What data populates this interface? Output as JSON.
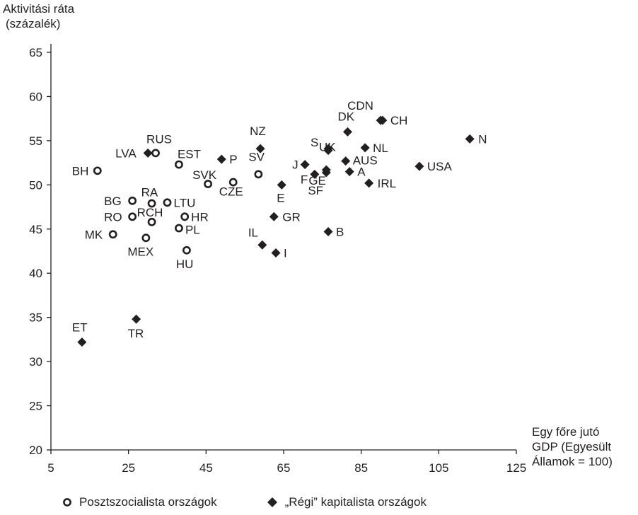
{
  "chart_data": {
    "type": "scatter",
    "ylabel": [
      "Aktivitási ráta",
      "(százalék)"
    ],
    "xlabel": [
      "Egy főre jutó",
      "GDP (Egyesült",
      "Államok = 100)"
    ],
    "xlim": [
      5,
      125
    ],
    "ylim": [
      20,
      65
    ],
    "xticks": [
      5,
      25,
      45,
      65,
      85,
      105,
      125
    ],
    "yticks": [
      20,
      25,
      30,
      35,
      40,
      45,
      50,
      55,
      60,
      65
    ],
    "grid": false,
    "legend_position": "bottom",
    "series": [
      {
        "name": "Posztszocialista országok",
        "marker": "circle-open",
        "points": [
          {
            "label": "BH",
            "x": 17,
            "y": 51.6
          },
          {
            "label": "RUS",
            "x": 32,
            "y": 53.6
          },
          {
            "label": "EST",
            "x": 38,
            "y": 52.3
          },
          {
            "label": "SVK",
            "x": 45.5,
            "y": 50.1
          },
          {
            "label": "CZE",
            "x": 52,
            "y": 50.3
          },
          {
            "label": "SV",
            "x": 58.5,
            "y": 51.2
          },
          {
            "label": "BG",
            "x": 26,
            "y": 48.2
          },
          {
            "label": "RA",
            "x": 31,
            "y": 47.9
          },
          {
            "label": "LTU",
            "x": 35,
            "y": 48.0
          },
          {
            "label": "RO",
            "x": 26,
            "y": 46.4
          },
          {
            "label": "RCH",
            "x": 31,
            "y": 45.8
          },
          {
            "label": "HR",
            "x": 39.5,
            "y": 46.4
          },
          {
            "label": "MK",
            "x": 21,
            "y": 44.4
          },
          {
            "label": "MEX",
            "x": 29.5,
            "y": 44.0
          },
          {
            "label": "PL",
            "x": 38,
            "y": 45.1
          },
          {
            "label": "HU",
            "x": 40,
            "y": 42.6
          }
        ]
      },
      {
        "name": "„Régi” kapitalista országok",
        "marker": "diamond-filled",
        "points": [
          {
            "label": "LVA",
            "x": 30,
            "y": 53.6
          },
          {
            "label": "P",
            "x": 49,
            "y": 52.9
          },
          {
            "label": "NZ",
            "x": 59,
            "y": 54.1
          },
          {
            "label": "E",
            "x": 64.5,
            "y": 50.0
          },
          {
            "label": "GR",
            "x": 62.5,
            "y": 46.4
          },
          {
            "label": "IL",
            "x": 59.5,
            "y": 43.2
          },
          {
            "label": "I",
            "x": 63,
            "y": 42.3
          },
          {
            "label": "J",
            "x": 70.5,
            "y": 52.3
          },
          {
            "label": "F",
            "x": 73,
            "y": 51.2
          },
          {
            "label": "SF",
            "x": 76,
            "y": 51.4
          },
          {
            "label": "GE",
            "x": 76,
            "y": 51.7
          },
          {
            "label": "UK",
            "x": 76.5,
            "y": 53.9
          },
          {
            "label": "S",
            "x": 76.5,
            "y": 54.1
          },
          {
            "label": "DK",
            "x": 81.5,
            "y": 56.0
          },
          {
            "label": "AUS",
            "x": 81,
            "y": 52.7
          },
          {
            "label": "A",
            "x": 82,
            "y": 51.5
          },
          {
            "label": "CDN",
            "x": 90,
            "y": 57.3
          },
          {
            "label": "CH",
            "x": 90.5,
            "y": 57.3
          },
          {
            "label": "NL",
            "x": 86,
            "y": 54.2
          },
          {
            "label": "IRL",
            "x": 87,
            "y": 50.2
          },
          {
            "label": "B",
            "x": 76.5,
            "y": 44.7
          },
          {
            "label": "USA",
            "x": 100,
            "y": 52.1
          },
          {
            "label": "N",
            "x": 113,
            "y": 55.2
          },
          {
            "label": "ET",
            "x": 13,
            "y": 32.2
          },
          {
            "label": "TR",
            "x": 27,
            "y": 34.8
          }
        ]
      }
    ]
  }
}
